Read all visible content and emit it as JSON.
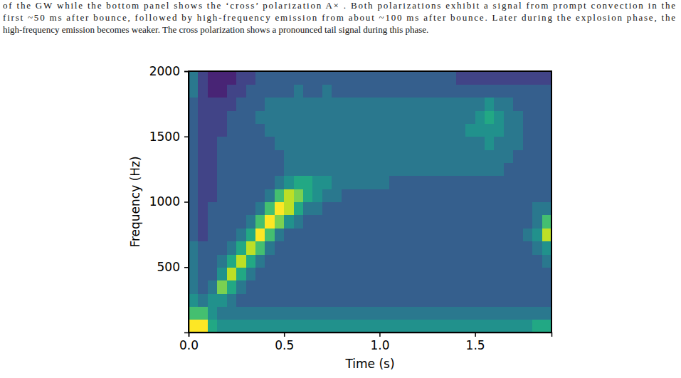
{
  "caption_lines": [
    "of the GW while the bottom panel shows the ‘cross’ polarization A× . Both polarizations exhibit a signal from prompt convection in the",
    "first ~50 ms after bounce, followed by high-frequency emission from about ~100 ms after bounce. Later during the explosion phase, the",
    "high-frequency emission becomes weaker. The cross polarization shows a pronounced tail signal during this phase."
  ],
  "chart_data": {
    "type": "heatmap",
    "x_label": "Time (s)",
    "y_label": "Frequency (Hz)",
    "xlim": [
      0,
      1.9
    ],
    "ylim": [
      0,
      2000
    ],
    "xticks": [
      {
        "value": 0,
        "label": "0.0"
      },
      0.5,
      {
        "value": 1,
        "label": "1.0"
      },
      1.5
    ],
    "yticks": [
      500,
      1000,
      1500,
      2000
    ],
    "zlim": [
      -1,
      9
    ],
    "xbins": [
      0,
      0.05,
      0.1,
      0.15,
      0.2,
      0.25,
      0.3,
      0.35,
      0.4,
      0.45,
      0.5,
      0.55,
      0.6,
      0.65,
      0.7,
      0.75,
      0.8,
      0.85,
      0.9,
      0.95,
      1.0,
      1.05,
      1.1,
      1.15,
      1.2,
      1.25,
      1.3,
      1.35,
      1.4,
      1.45,
      1.5,
      1.55,
      1.6,
      1.65,
      1.7,
      1.75,
      1.8,
      1.85,
      1.9
    ],
    "ybins": [
      0,
      100,
      200,
      300,
      400,
      500,
      600,
      700,
      800,
      900,
      1000,
      1100,
      1200,
      1300,
      1400,
      1500,
      1600,
      1700,
      1800,
      1900,
      2000
    ],
    "values": [
      [
        9,
        9,
        5,
        4,
        4,
        4,
        4,
        4,
        4,
        4,
        4,
        4,
        4,
        4,
        4,
        4,
        4,
        4,
        4,
        4,
        4,
        4,
        4,
        4,
        4,
        4,
        4,
        4,
        4,
        4,
        4,
        4,
        4,
        4,
        4,
        4,
        5,
        5
      ],
      [
        6,
        6,
        4,
        3,
        3,
        3,
        3,
        3,
        3,
        3,
        3,
        3,
        3,
        3,
        3,
        3,
        3,
        3,
        3,
        3,
        3,
        3,
        3,
        3,
        3,
        3,
        3,
        3,
        3,
        3,
        3,
        3,
        3,
        3,
        3,
        3,
        3,
        3
      ],
      [
        4,
        3,
        4,
        4,
        3,
        2,
        2,
        2,
        2,
        2,
        2,
        2,
        2,
        2,
        2,
        2,
        2,
        2,
        2,
        2,
        2,
        2,
        2,
        2,
        2,
        2,
        2,
        2,
        2,
        2,
        2,
        2,
        2,
        2,
        2,
        2,
        2,
        2
      ],
      [
        3,
        2,
        3,
        7,
        5,
        3,
        2,
        2,
        2,
        2,
        2,
        2,
        2,
        2,
        2,
        2,
        2,
        2,
        2,
        2,
        2,
        2,
        2,
        2,
        2,
        2,
        2,
        2,
        2,
        2,
        2,
        2,
        2,
        2,
        2,
        2,
        2,
        2
      ],
      [
        3,
        2,
        2,
        4,
        8,
        5,
        3,
        2,
        2,
        2,
        2,
        2,
        2,
        2,
        2,
        2,
        2,
        2,
        2,
        2,
        2,
        2,
        2,
        2,
        2,
        2,
        2,
        2,
        2,
        2,
        2,
        2,
        2,
        2,
        2,
        2,
        2,
        2
      ],
      [
        3,
        2,
        2,
        3,
        5,
        8,
        5,
        3,
        2,
        2,
        2,
        2,
        2,
        2,
        2,
        2,
        2,
        2,
        2,
        2,
        2,
        2,
        2,
        2,
        2,
        2,
        2,
        2,
        2,
        2,
        2,
        2,
        2,
        2,
        2,
        2,
        2,
        3
      ],
      [
        3,
        2,
        2,
        2,
        3,
        5,
        8,
        6,
        3,
        2,
        2,
        2,
        2,
        2,
        2,
        2,
        2,
        2,
        2,
        2,
        2,
        2,
        2,
        2,
        2,
        2,
        2,
        2,
        2,
        2,
        2,
        2,
        2,
        2,
        2,
        2,
        3,
        4
      ],
      [
        2,
        1,
        2,
        2,
        2,
        3,
        5,
        9,
        6,
        3,
        2,
        2,
        2,
        2,
        2,
        2,
        2,
        2,
        2,
        2,
        2,
        2,
        2,
        2,
        2,
        2,
        2,
        2,
        2,
        2,
        2,
        2,
        2,
        2,
        2,
        3,
        4,
        8
      ],
      [
        2,
        1,
        2,
        2,
        2,
        2,
        3,
        6,
        9,
        7,
        4,
        3,
        2,
        2,
        2,
        2,
        2,
        2,
        2,
        2,
        2,
        2,
        2,
        2,
        2,
        2,
        2,
        2,
        2,
        2,
        2,
        2,
        2,
        2,
        2,
        2,
        3,
        6
      ],
      [
        2,
        1,
        2,
        2,
        2,
        2,
        2,
        3,
        6,
        9,
        8,
        5,
        3,
        3,
        2,
        2,
        2,
        2,
        2,
        2,
        2,
        2,
        2,
        2,
        2,
        2,
        2,
        2,
        2,
        2,
        2,
        2,
        2,
        2,
        2,
        2,
        3,
        3
      ],
      [
        2,
        1,
        1,
        2,
        2,
        2,
        2,
        2,
        3,
        6,
        8,
        7,
        5,
        4,
        3,
        3,
        2,
        2,
        2,
        2,
        2,
        2,
        2,
        2,
        2,
        2,
        2,
        2,
        2,
        2,
        2,
        2,
        2,
        2,
        2,
        2,
        2,
        2
      ],
      [
        2,
        1,
        1,
        2,
        2,
        2,
        2,
        2,
        2,
        3,
        4,
        5,
        5,
        4,
        4,
        3,
        3,
        3,
        3,
        3,
        3,
        2,
        2,
        2,
        2,
        2,
        2,
        2,
        2,
        2,
        2,
        2,
        2,
        2,
        2,
        2,
        2,
        2
      ],
      [
        2,
        1,
        1,
        2,
        2,
        2,
        2,
        2,
        2,
        2,
        3,
        3,
        3,
        3,
        3,
        3,
        3,
        3,
        3,
        3,
        3,
        3,
        3,
        3,
        3,
        3,
        3,
        3,
        3,
        3,
        3,
        3,
        3,
        2,
        2,
        2,
        2,
        2
      ],
      [
        2,
        1,
        1,
        2,
        2,
        2,
        2,
        2,
        2,
        2,
        3,
        3,
        3,
        3,
        3,
        3,
        3,
        3,
        3,
        3,
        3,
        3,
        3,
        3,
        3,
        3,
        3,
        3,
        3,
        3,
        3,
        3,
        3,
        3,
        2,
        2,
        2,
        2
      ],
      [
        2,
        1,
        1,
        2,
        2,
        2,
        2,
        2,
        2,
        3,
        3,
        3,
        3,
        3,
        3,
        3,
        3,
        3,
        3,
        3,
        3,
        3,
        3,
        3,
        3,
        3,
        3,
        3,
        3,
        3,
        3,
        4,
        3,
        3,
        3,
        2,
        2,
        2
      ],
      [
        2,
        1,
        1,
        1,
        2,
        2,
        2,
        2,
        3,
        3,
        3,
        3,
        3,
        3,
        3,
        3,
        3,
        3,
        3,
        3,
        3,
        3,
        3,
        3,
        3,
        3,
        3,
        3,
        3,
        4,
        4,
        4,
        4,
        3,
        3,
        2,
        2,
        2
      ],
      [
        2,
        1,
        1,
        1,
        2,
        2,
        2,
        3,
        3,
        3,
        3,
        3,
        3,
        3,
        3,
        3,
        3,
        3,
        3,
        3,
        3,
        3,
        3,
        3,
        3,
        3,
        3,
        3,
        3,
        3,
        4,
        5,
        4,
        3,
        3,
        2,
        2,
        2
      ],
      [
        2,
        1,
        1,
        1,
        1,
        2,
        2,
        2,
        3,
        3,
        3,
        3,
        3,
        3,
        3,
        3,
        3,
        3,
        3,
        3,
        3,
        3,
        3,
        3,
        3,
        3,
        3,
        3,
        3,
        3,
        3,
        4,
        3,
        3,
        2,
        2,
        2,
        2
      ],
      [
        3,
        1,
        0,
        0,
        1,
        1,
        2,
        2,
        2,
        2,
        2,
        3,
        2,
        2,
        3,
        2,
        2,
        2,
        2,
        2,
        2,
        2,
        2,
        2,
        2,
        2,
        2,
        2,
        2,
        2,
        2,
        2,
        2,
        2,
        2,
        2,
        2,
        2
      ],
      [
        3,
        1,
        0,
        0,
        0,
        1,
        1,
        2,
        2,
        2,
        2,
        2,
        2,
        2,
        2,
        2,
        2,
        2,
        2,
        2,
        2,
        2,
        2,
        2,
        2,
        2,
        2,
        2,
        1,
        1,
        1,
        1,
        1,
        1,
        1,
        1,
        1,
        1
      ]
    ]
  }
}
